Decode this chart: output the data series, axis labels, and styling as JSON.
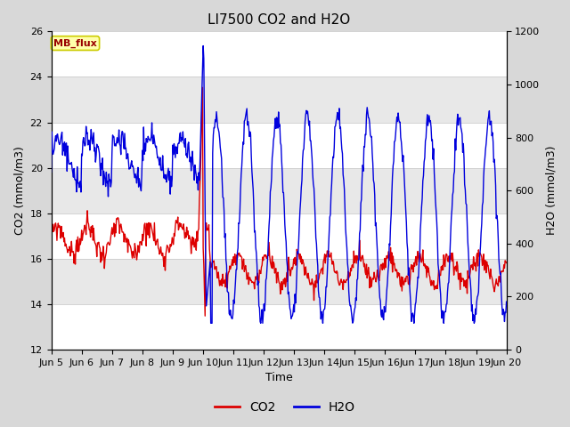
{
  "title": "LI7500 CO2 and H2O",
  "ylabel_left": "CO2 (mmol/m3)",
  "ylabel_right": "H2O (mmol/m3)",
  "xlabel": "Time",
  "ylim_left": [
    12,
    26
  ],
  "ylim_right": [
    0,
    1200
  ],
  "yticks_left": [
    12,
    14,
    16,
    18,
    20,
    22,
    24,
    26
  ],
  "yticks_right": [
    0,
    200,
    400,
    600,
    800,
    1000,
    1200
  ],
  "fig_bg_color": "#d8d8d8",
  "plot_bg_color": "#f0f0f0",
  "co2_color": "#dd0000",
  "h2o_color": "#0000dd",
  "annotation_text": "MB_flux",
  "annotation_bg": "#ffffaa",
  "annotation_border": "#cccc00",
  "title_fontsize": 11,
  "axis_fontsize": 9,
  "tick_fontsize": 8,
  "legend_fontsize": 10
}
